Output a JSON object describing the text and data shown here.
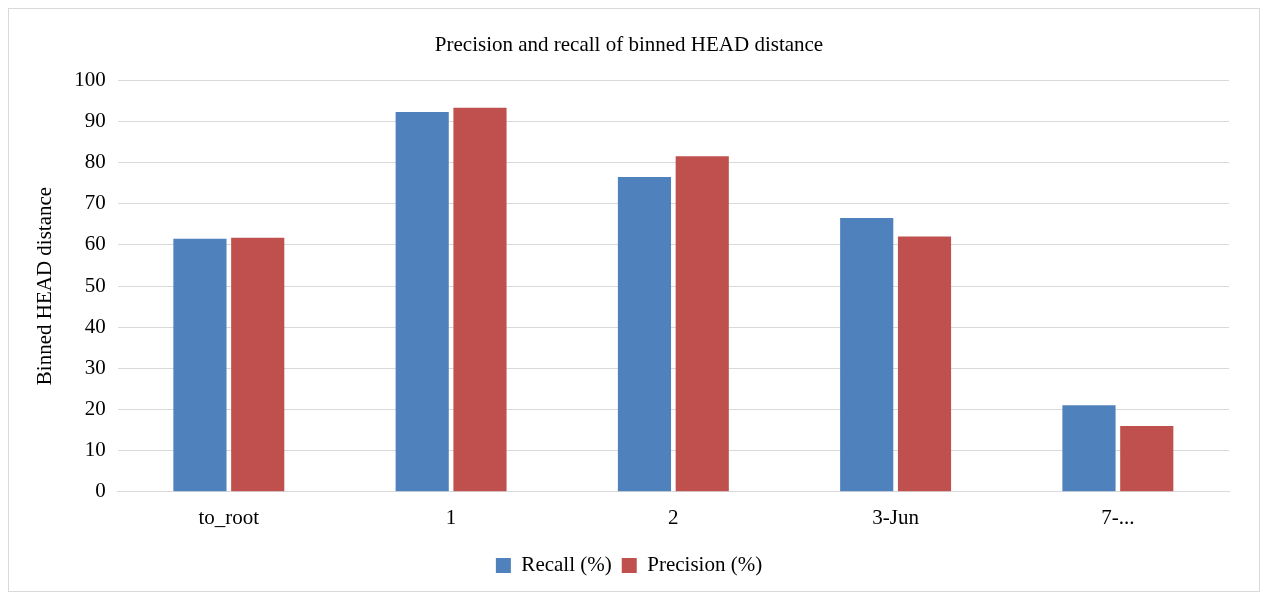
{
  "chart_data": {
    "type": "bar",
    "title": "Precision and recall of binned HEAD distance",
    "ylabel": "Binned HEAD distance",
    "categories": [
      "to_root",
      "1",
      "2",
      "3-Jun",
      "7-..."
    ],
    "series": [
      {
        "name": "Recall (%)",
        "color": "#4f81bd",
        "values": [
          61.5,
          92.3,
          76.5,
          66.5,
          21
        ]
      },
      {
        "name": "Precision (%)",
        "color": "#c0504d",
        "values": [
          61.7,
          93.3,
          81.5,
          62,
          16
        ]
      }
    ],
    "ylim": [
      0,
      100
    ],
    "yticks": [
      0,
      10,
      20,
      30,
      40,
      50,
      60,
      70,
      80,
      90,
      100
    ],
    "grid": "y",
    "legend": "bottom"
  }
}
